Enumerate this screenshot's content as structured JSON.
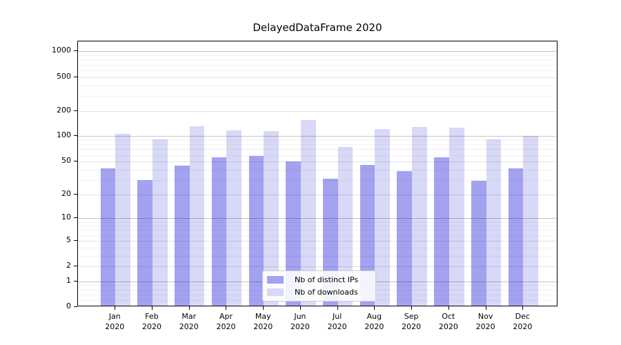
{
  "figure": {
    "title": "DelayedDataFrame 2020"
  },
  "chart_data": {
    "type": "bar",
    "title": "DelayedDataFrame 2020",
    "categories": [
      "Jan 2020",
      "Feb 2020",
      "Mar 2020",
      "Apr 2020",
      "May 2020",
      "Jun 2020",
      "Jul 2020",
      "Aug 2020",
      "Sep 2020",
      "Oct 2020",
      "Nov 2020",
      "Dec 2020"
    ],
    "months": [
      "Jan",
      "Feb",
      "Mar",
      "Apr",
      "May",
      "Jun",
      "Jul",
      "Aug",
      "Sep",
      "Oct",
      "Nov",
      "Dec"
    ],
    "year": "2020",
    "series": [
      {
        "name": "Nb of distinct IPs",
        "color": "#a2a2f0",
        "values": [
          40,
          29,
          43,
          54,
          56,
          48,
          30,
          44,
          37,
          54,
          28,
          40
        ]
      },
      {
        "name": "Nb of downloads",
        "color": "#d8d8f7",
        "values": [
          102,
          89,
          126,
          112,
          110,
          149,
          72,
          117,
          125,
          121,
          89,
          98
        ]
      }
    ],
    "y_scale": "log1p",
    "ylim": [
      0,
      1310
    ],
    "y_ticks": [
      0,
      1,
      2,
      5,
      10,
      20,
      50,
      100,
      200,
      500,
      1000
    ],
    "grid": {
      "major": {
        "values": [
          1,
          10,
          100,
          1000
        ],
        "color": "rgba(0,0,0,0.23)"
      },
      "mid": {
        "values": [
          2,
          5,
          20,
          50,
          200,
          500
        ],
        "color": "rgba(0,0,0,0.11)"
      },
      "minor": {
        "values": [
          0.2,
          0.4,
          0.6,
          0.8,
          3,
          4,
          6,
          7,
          8,
          9,
          30,
          40,
          60,
          70,
          80,
          90,
          300,
          400,
          600,
          700,
          800,
          900
        ],
        "color": "rgba(0,0,0,0.05)"
      }
    },
    "grid_over_bars": true,
    "legend_position": "lower center",
    "axes_frame": true
  }
}
